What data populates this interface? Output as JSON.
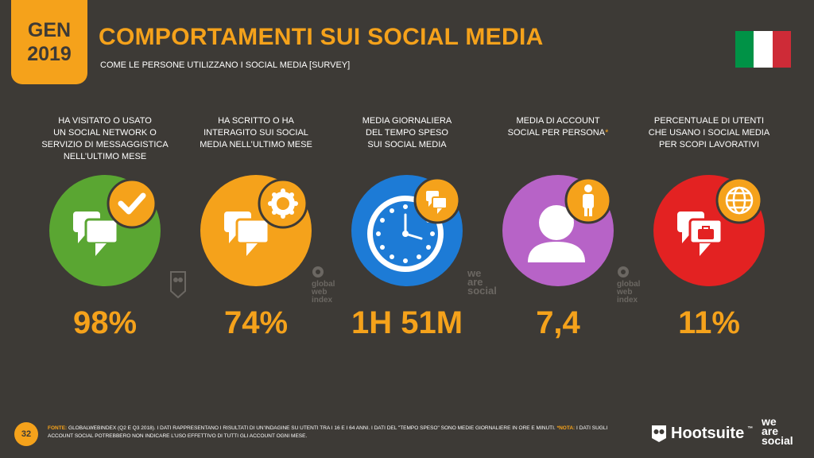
{
  "header": {
    "date_month": "GEN",
    "date_year": "2019",
    "title": "COMPORTAMENTI SUI SOCIAL MEDIA",
    "subtitle": "COME LE PERSONE UTILIZZANO I SOCIAL MEDIA [SURVEY]"
  },
  "flag": {
    "colors": [
      "#009246",
      "#ffffff",
      "#ce2b37"
    ]
  },
  "stats": [
    {
      "label": "HA VISITATO O USATO\nUN SOCIAL NETWORK O\nSERVIZIO DI MESSAGGISTICA\nNELL’ULTIMO MESE",
      "value": "98%",
      "color": "#5aa632",
      "icon": "check-icon"
    },
    {
      "label": "HA SCRITTO O HA\nINTERAGITO SUI SOCIAL\nMEDIA NELL’ULTIMO MESE",
      "value": "74%",
      "color": "#f5a21b",
      "icon": "badge-icon"
    },
    {
      "label": "MEDIA GIORNALIERA\nDEL TEMPO SPESO\nSUI SOCIAL MEDIA",
      "value": "1H 51M",
      "color": "#1d7bd6",
      "icon": "clock-icon"
    },
    {
      "label": "MEDIA DI ACCOUNT\nSOCIAL PER PERSONA",
      "label_star": "*",
      "value": "7,4",
      "color": "#b763c7",
      "icon": "person-icon"
    },
    {
      "label": "PERCENTUALE DI UTENTI\nCHE USANO I SOCIAL MEDIA\nPER SCOPI LAVORATIVI",
      "value": "11%",
      "color": "#e32222",
      "icon": "globe-icon"
    }
  ],
  "watermarks": {
    "gwi": "global\nweb\nindex",
    "was": "we\nare\nsocial"
  },
  "footer": {
    "page_number": "32",
    "source_label": "FONTE:",
    "source_text": " GLOBALWEBINDEX (Q2 E Q3 2018). I DATI RAPPRESENTANO I RISULTATI DI UN’INDAGINE SU UTENTI TRA I 16 E I 64 ANNI. I DATI DEL \"TEMPO SPESO\" SONO MEDIE GIORNALIERE IN ORE E MINUTI.",
    "note_label": "*NOTA:",
    "note_text": " I DATI SUGLI ACCOUNT SOCIAL POTREBBERO NON INDICARE L’USO EFFETTIVO DI TUTTI GLI ACCOUNT OGNI MESE."
  },
  "brands": {
    "hootsuite": "Hootsuite",
    "hootsuite_tm": "™",
    "was": "we\nare\nsocial"
  }
}
